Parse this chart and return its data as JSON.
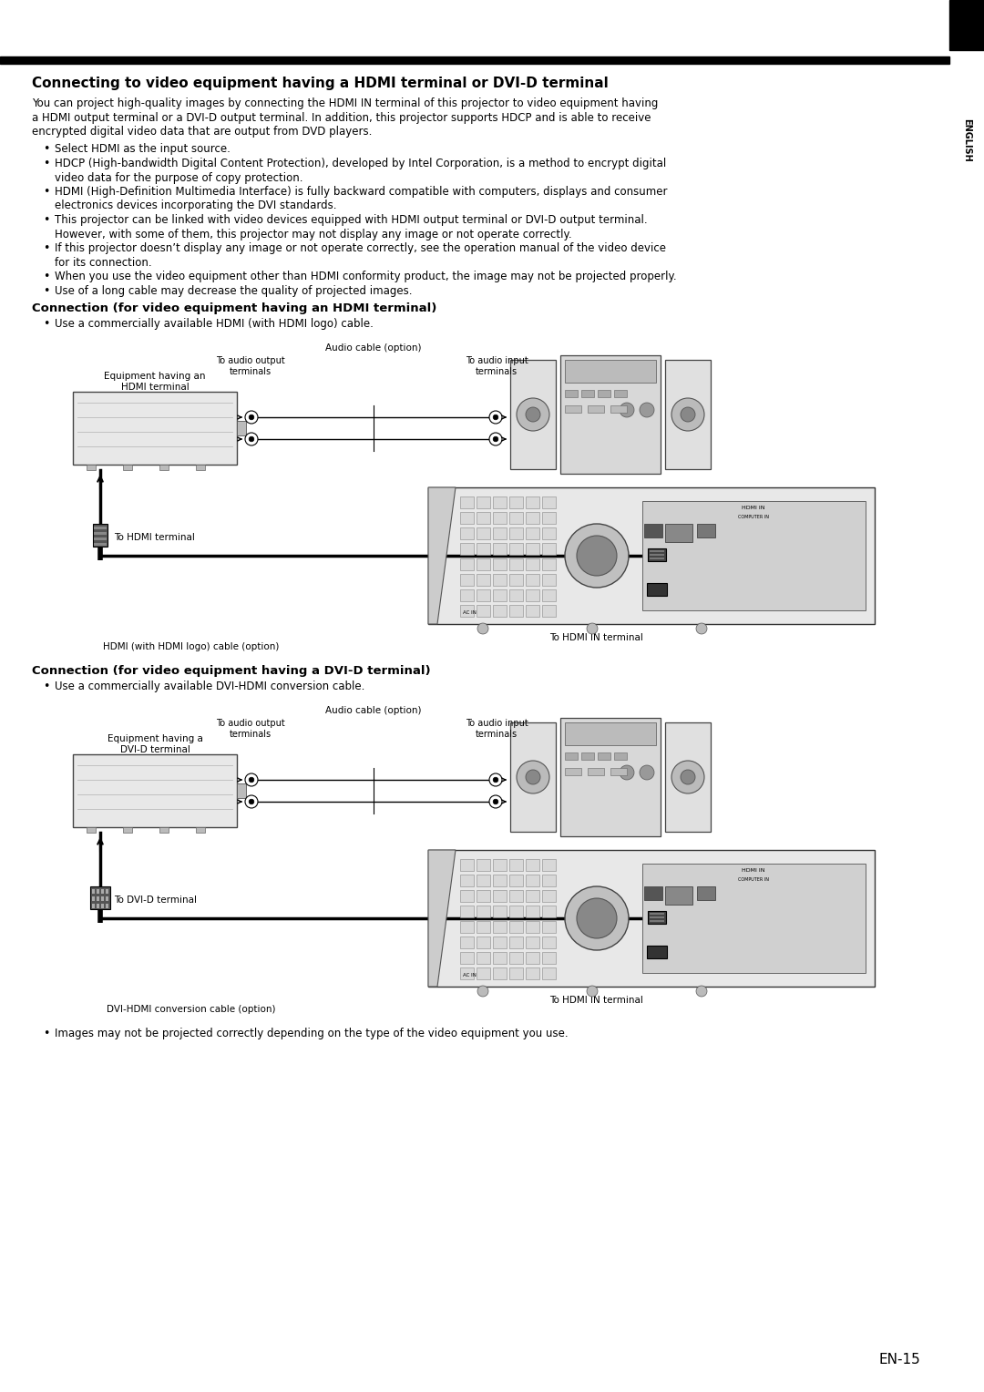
{
  "page_bg": "#ffffff",
  "title": "Connecting to video equipment having a HDMI terminal or DVI-D terminal",
  "intro_lines": [
    "You can project high-quality images by connecting the HDMI IN terminal of this projector to video equipment having",
    "a HDMI output terminal or a DVI-D output terminal. In addition, this projector supports HDCP and is able to receive",
    "encrypted digital video data that are output from DVD players."
  ],
  "bullets": [
    [
      "Select HDMI as the input source."
    ],
    [
      "HDCP (High-bandwidth Digital Content Protection), developed by Intel Corporation, is a method to encrypt digital",
      "video data for the purpose of copy protection."
    ],
    [
      "HDMI (High-Definition Multimedia Interface) is fully backward compatible with computers, displays and consumer",
      "electronics devices incorporating the DVI standards."
    ],
    [
      "This projector can be linked with video devices equipped with HDMI output terminal or DVI-D output terminal.",
      "However, with some of them, this projector may not display any image or not operate correctly."
    ],
    [
      "If this projector doesn’t display any image or not operate correctly, see the operation manual of the video device",
      "for its connection."
    ],
    [
      "When you use the video equipment other than HDMI conformity product, the image may not be projected properly."
    ],
    [
      "Use of a long cable may decrease the quality of projected images."
    ]
  ],
  "hdmi_section_title": "Connection (for video equipment having an HDMI terminal)",
  "hdmi_bullet": "Use a commercially available HDMI (with HDMI logo) cable.",
  "dvi_section_title": "Connection (for video equipment having a DVI-D terminal)",
  "dvi_bullet": "Use a commercially available DVI-HDMI conversion cable.",
  "last_bullet": "Images may not be projected correctly depending on the type of the video equipment you use.",
  "page_number": "EN-15",
  "english_label": "ENGLISH",
  "hdmi_cable_label": "HDMI (with HDMI logo) cable (option)",
  "dvi_cable_label": "DVI-HDMI conversion cable (option)",
  "hdmi_terminal_label": "To HDMI terminal",
  "dvi_terminal_label": "To DVI-D terminal",
  "hdmi_in_label": "To HDMI IN terminal",
  "audio_cable_label": "Audio cable (option)",
  "audio_out_label": "To audio output\nterminals",
  "audio_in_label": "To audio input\nterminals",
  "equip_hdmi_label": "Equipment having an\nHDMI terminal",
  "equip_dvi_label": "Equipment having a\nDVI-D terminal"
}
